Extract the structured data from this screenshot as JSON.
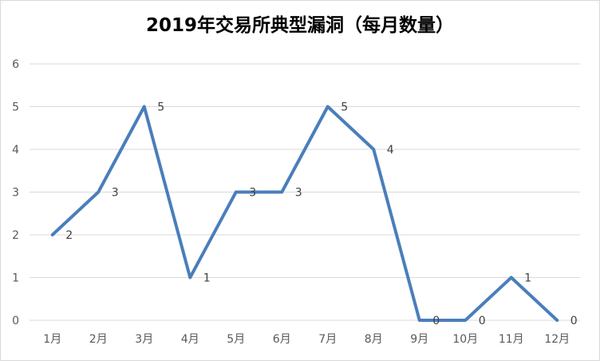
{
  "chart_data": {
    "type": "line",
    "title": "2019年交易所典型漏洞（每月数量）",
    "xlabel": "",
    "ylabel": "",
    "categories": [
      "1月",
      "2月",
      "3月",
      "4月",
      "5月",
      "6月",
      "7月",
      "8月",
      "9月",
      "10月",
      "11月",
      "12月"
    ],
    "series": [
      {
        "values": [
          2,
          3,
          5,
          1,
          3,
          3,
          5,
          4,
          0,
          0,
          1,
          0
        ]
      }
    ],
    "ylim": [
      0,
      6
    ],
    "yticks": [
      0,
      1,
      2,
      3,
      4,
      5,
      6
    ],
    "grid": true,
    "data_labels": true,
    "legend": "none",
    "colors": {
      "line": "#4a7ebb",
      "grid": "#d9d9d9",
      "axis_text": "#595959",
      "label_text": "#404040"
    }
  }
}
